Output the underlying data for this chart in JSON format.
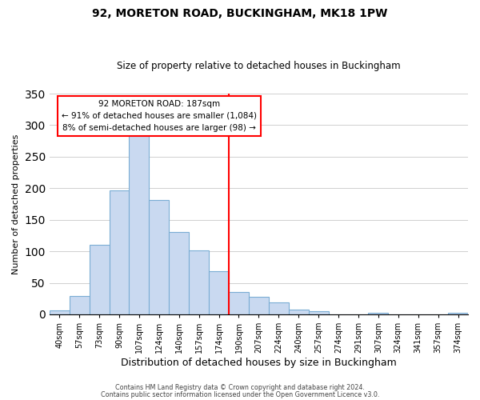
{
  "title": "92, MORETON ROAD, BUCKINGHAM, MK18 1PW",
  "subtitle": "Size of property relative to detached houses in Buckingham",
  "xlabel": "Distribution of detached houses by size in Buckingham",
  "ylabel": "Number of detached properties",
  "bar_labels": [
    "40sqm",
    "57sqm",
    "73sqm",
    "90sqm",
    "107sqm",
    "124sqm",
    "140sqm",
    "157sqm",
    "174sqm",
    "190sqm",
    "207sqm",
    "224sqm",
    "240sqm",
    "257sqm",
    "274sqm",
    "291sqm",
    "307sqm",
    "324sqm",
    "341sqm",
    "357sqm",
    "374sqm"
  ],
  "bar_values": [
    6,
    29,
    110,
    197,
    290,
    181,
    130,
    101,
    68,
    35,
    28,
    19,
    8,
    5,
    0,
    0,
    2,
    0,
    0,
    0,
    2
  ],
  "bar_color": "#c9d9f0",
  "bar_edge_color": "#7aadd4",
  "ylim": [
    0,
    350
  ],
  "yticks": [
    0,
    50,
    100,
    150,
    200,
    250,
    300,
    350
  ],
  "vline_x_index": 9,
  "vline_color": "red",
  "annotation_title": "92 MORETON ROAD: 187sqm",
  "annotation_line1": "← 91% of detached houses are smaller (1,084)",
  "annotation_line2": "8% of semi-detached houses are larger (98) →",
  "annotation_box_color": "white",
  "annotation_box_edge": "red",
  "grid_color": "#d0d0d0",
  "background_color": "white",
  "footer1": "Contains HM Land Registry data © Crown copyright and database right 2024.",
  "footer2": "Contains public sector information licensed under the Open Government Licence v3.0."
}
